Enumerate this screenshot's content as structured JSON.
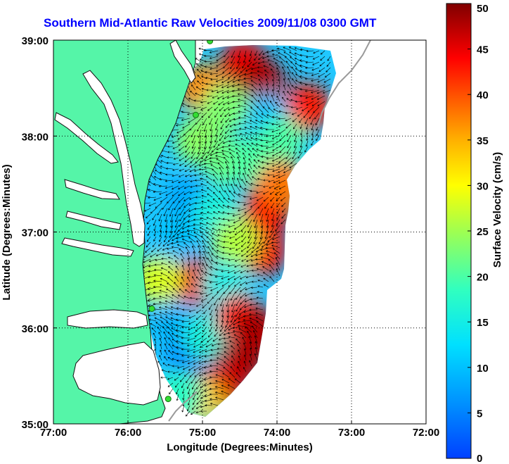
{
  "chart_data": {
    "type": "heatmap",
    "title": "Southern Mid-Atlantic Raw Velocities 2009/11/08 0300 GMT",
    "xlabel": "Longitude (Degrees:Minutes)",
    "ylabel": "Latitude (Degrees:Minutes)",
    "x_ticks": [
      "77:00",
      "76:00",
      "75:00",
      "74:00",
      "73:00",
      "72:00"
    ],
    "x_tick_values": [
      -77,
      -76,
      -75,
      -74,
      -73,
      -72
    ],
    "y_ticks": [
      "39:00",
      "38:00",
      "37:00",
      "36:00",
      "35:00"
    ],
    "y_tick_values": [
      39,
      38,
      37,
      36,
      35
    ],
    "xlim": [
      -77,
      -72
    ],
    "ylim": [
      35,
      39
    ],
    "grid": true,
    "colorbar": {
      "label": "Surface Velocity (cm/s)",
      "ticks": [
        "0",
        "5",
        "10",
        "15",
        "20",
        "25",
        "30",
        "35",
        "40",
        "45",
        "50"
      ],
      "range": [
        0,
        50
      ],
      "colormap": "jet"
    },
    "colors": {
      "land": "#55f5a8",
      "water": "#ffffff",
      "title": "#0000ff",
      "station": "#33dd33"
    },
    "stations": [
      {
        "lon": -74.9,
        "lat": 38.99
      },
      {
        "lon": -75.09,
        "lat": 38.22
      },
      {
        "lon": -75.68,
        "lat": 36.2
      },
      {
        "lon": -75.46,
        "lat": 35.26
      }
    ],
    "speed_regions": [
      {
        "lon": -74.45,
        "lat": 38.75,
        "speed": 45
      },
      {
        "lon": -74.2,
        "lat": 38.55,
        "speed": 48
      },
      {
        "lon": -73.6,
        "lat": 38.3,
        "speed": 43
      },
      {
        "lon": -75.0,
        "lat": 38.5,
        "speed": 37
      },
      {
        "lon": -74.15,
        "lat": 38.2,
        "speed": 10
      },
      {
        "lon": -74.7,
        "lat": 38.3,
        "speed": 23
      },
      {
        "lon": -75.05,
        "lat": 37.95,
        "speed": 24
      },
      {
        "lon": -74.7,
        "lat": 37.75,
        "speed": 22
      },
      {
        "lon": -74.3,
        "lat": 37.75,
        "speed": 20
      },
      {
        "lon": -73.95,
        "lat": 37.95,
        "speed": 20
      },
      {
        "lon": -75.2,
        "lat": 37.35,
        "speed": 8
      },
      {
        "lon": -75.35,
        "lat": 36.95,
        "speed": 10
      },
      {
        "lon": -74.8,
        "lat": 37.2,
        "speed": 16
      },
      {
        "lon": -74.2,
        "lat": 37.1,
        "speed": 46
      },
      {
        "lon": -74.1,
        "lat": 37.3,
        "speed": 44
      },
      {
        "lon": -74.2,
        "lat": 36.8,
        "speed": 44
      },
      {
        "lon": -73.95,
        "lat": 37.5,
        "speed": 38
      },
      {
        "lon": -74.55,
        "lat": 36.9,
        "speed": 26
      },
      {
        "lon": -75.25,
        "lat": 36.42,
        "speed": 46
      },
      {
        "lon": -75.05,
        "lat": 36.48,
        "speed": 45
      },
      {
        "lon": -75.6,
        "lat": 36.5,
        "speed": 28
      },
      {
        "lon": -74.7,
        "lat": 36.45,
        "speed": 15
      },
      {
        "lon": -75.35,
        "lat": 36.05,
        "speed": 9
      },
      {
        "lon": -75.15,
        "lat": 35.7,
        "speed": 5
      },
      {
        "lon": -74.95,
        "lat": 35.9,
        "speed": 16
      },
      {
        "lon": -74.5,
        "lat": 36.1,
        "speed": 43
      },
      {
        "lon": -74.25,
        "lat": 35.95,
        "speed": 48
      },
      {
        "lon": -74.5,
        "lat": 35.65,
        "speed": 48
      },
      {
        "lon": -74.75,
        "lat": 35.4,
        "speed": 46
      },
      {
        "lon": -75.05,
        "lat": 35.25,
        "speed": 33
      },
      {
        "lon": -75.3,
        "lat": 35.3,
        "speed": 18
      }
    ]
  }
}
